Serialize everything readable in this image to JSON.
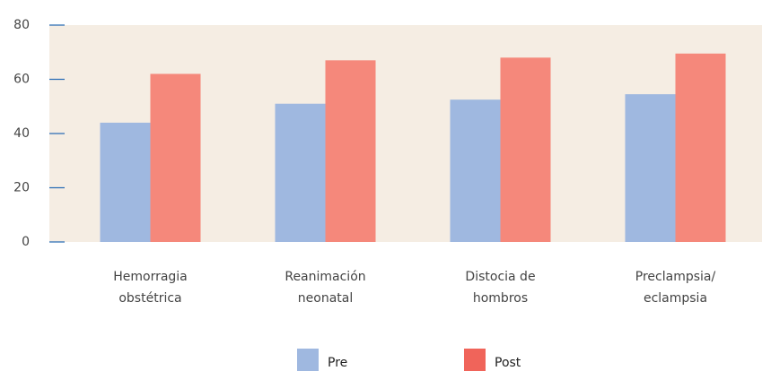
{
  "chart_data": {
    "type": "bar",
    "categories": [
      [
        "Hemorragia",
        "obstétrica"
      ],
      [
        "Reanimación",
        "neonatal"
      ],
      [
        "Distocia de",
        "hombros"
      ],
      [
        "Preclampsia/",
        "eclampsia"
      ]
    ],
    "series": [
      {
        "name": "Pre",
        "color": "#9fb8e0",
        "values": [
          44,
          51,
          52.5,
          54.5
        ]
      },
      {
        "name": "Post",
        "color": "#f5887b",
        "values": [
          62,
          67,
          68,
          69.5
        ]
      }
    ],
    "ylim": [
      0,
      80
    ],
    "yticks": [
      0,
      20,
      40,
      60,
      80
    ]
  }
}
